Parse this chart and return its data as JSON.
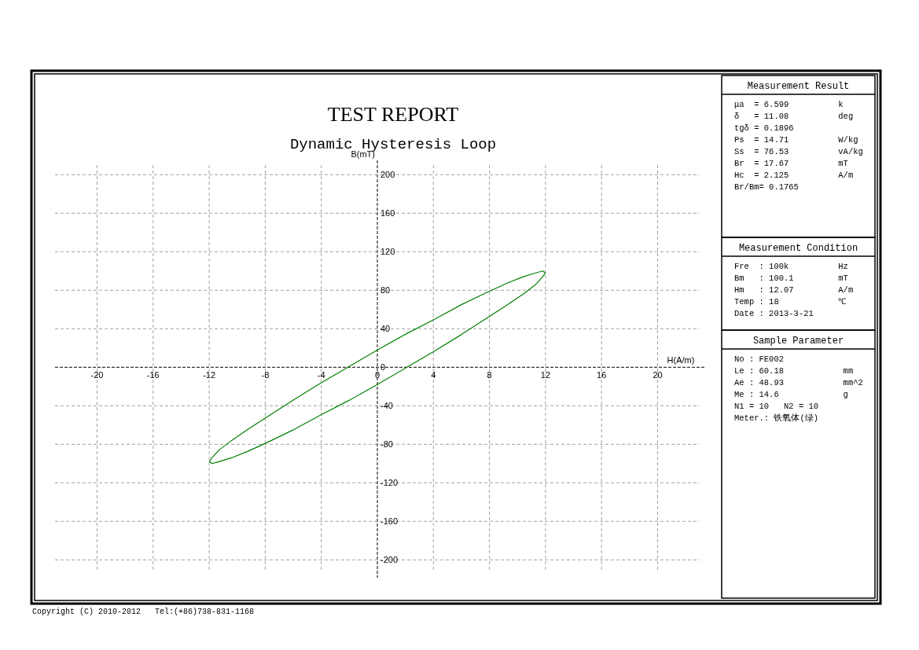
{
  "chart_data": [
    {
      "type": "line",
      "title": "TEST REPORT",
      "subtitle": "Dynamic Hysteresis Loop",
      "xlabel": "H(A/m)",
      "ylabel": "B(mT)",
      "series": [
        {
          "color": "#008000",
          "x": [
            -12,
            -11.8,
            -11.3,
            -10.4,
            -9.2,
            -7.7,
            -6.0,
            -4.1,
            -2.1,
            0,
            2.1,
            4.1,
            6.0,
            7.7,
            9.2,
            10.4,
            11.3,
            11.8,
            12
          ],
          "values": [
            -98,
            -94,
            -86,
            -76,
            -64,
            -50,
            -34,
            -17,
            0,
            18,
            35,
            50,
            65,
            77,
            87,
            94,
            98,
            100,
            98
          ]
        },
        {
          "color": "#008000",
          "x": [
            -12,
            -11.8,
            -11.3,
            -10.4,
            -9.2,
            -7.7,
            -6.0,
            -4.1,
            -2.1,
            0,
            2.1,
            4.1,
            6.0,
            7.7,
            9.2,
            10.4,
            11.3,
            11.8,
            12
          ],
          "values": [
            -98,
            -100,
            -98,
            -94,
            -87,
            -77,
            -65,
            -50,
            -35,
            -18,
            0,
            17,
            34,
            50,
            64,
            76,
            86,
            94,
            98
          ]
        }
      ],
      "xlim": [
        -23,
        23
      ],
      "ylim": [
        -212,
        210
      ],
      "xticks": [
        -20,
        -16,
        -12,
        -8,
        -4,
        0,
        4,
        8,
        12,
        16,
        20
      ],
      "yticks": [
        -200,
        -160,
        -120,
        -80,
        -40,
        0,
        40,
        80,
        120,
        160,
        200
      ],
      "grid": true,
      "line_style": "solid",
      "marker": "none",
      "annotations": [
        "Copyright (C) 2010-2012   Tel:(+86)738-831-1168"
      ]
    },
    {
      "type": "other",
      "title": "Measurement Result",
      "annotations": [
        "μa  = 6.599          k",
        "δ   = 11.08          deg",
        "tgδ = 0.1896",
        "Ps  = 14.71          W/kg",
        "Ss  = 76.53          vA/kg",
        "Br  = 17.67          mT",
        "Hc  = 2.125          A/m",
        "Br/Bm= 0.1765"
      ]
    },
    {
      "type": "other",
      "title": "Measurement Condition",
      "annotations": [
        "Fre  : 100k          Hz",
        "Bm   : 100.1         mT",
        "Hm   : 12.07         A/m",
        "Temp : 18            ℃",
        "Date : 2013-3-21"
      ]
    },
    {
      "type": "other",
      "title": "Sample Parameter",
      "annotations": [
        "No : FE002",
        "Le : 60.18            mm",
        "Ae : 48.93            mm^2",
        "Me : 14.6             g",
        "N1 = 10   N2 = 10",
        "Meter.: 铁氧体(绿)"
      ]
    }
  ]
}
